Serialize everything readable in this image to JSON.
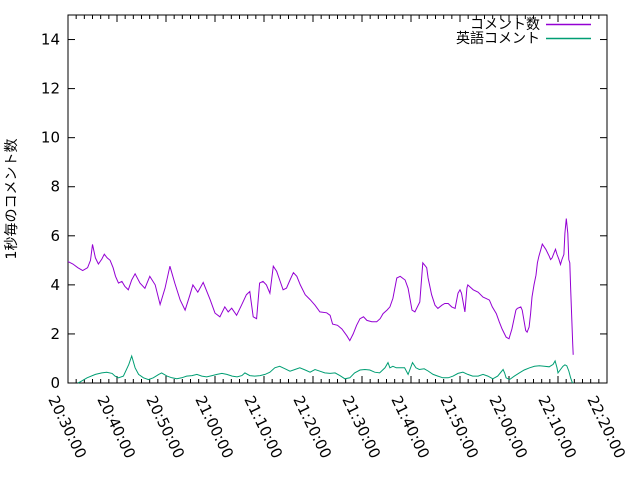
{
  "chart_data": {
    "type": "line",
    "title": "",
    "xlabel": "",
    "ylabel": "1秒毎のコメント数",
    "x_unit": "minutes since 20:30:00",
    "xlim_minutes": [
      0,
      110
    ],
    "ylim": [
      0,
      15
    ],
    "grid": false,
    "legend_position": "top-right-inside",
    "y_ticks": [
      0,
      2,
      4,
      6,
      8,
      10,
      12,
      14
    ],
    "x_major_ticks": [
      {
        "minutes": 0,
        "label": "20:30:00"
      },
      {
        "minutes": 10,
        "label": "20:40:00"
      },
      {
        "minutes": 20,
        "label": "20:50:00"
      },
      {
        "minutes": 30,
        "label": "21:00:00"
      },
      {
        "minutes": 40,
        "label": "21:10:00"
      },
      {
        "minutes": 50,
        "label": "21:20:00"
      },
      {
        "minutes": 60,
        "label": "21:30:00"
      },
      {
        "minutes": 70,
        "label": "21:40:00"
      },
      {
        "minutes": 80,
        "label": "21:50:00"
      },
      {
        "minutes": 90,
        "label": "22:00:00"
      },
      {
        "minutes": 100,
        "label": "22:10:00"
      },
      {
        "minutes": 110,
        "label": "22:20:00"
      }
    ],
    "x_minor_divisions_per_major": 6,
    "series": [
      {
        "name": "コメント数",
        "color": "#9400d3",
        "points": [
          [
            0,
            4.95
          ],
          [
            1,
            4.85
          ],
          [
            2,
            4.7
          ],
          [
            3,
            4.58
          ],
          [
            4,
            4.7
          ],
          [
            4.6,
            5.0
          ],
          [
            5,
            5.65
          ],
          [
            5.6,
            5.1
          ],
          [
            6.2,
            4.85
          ],
          [
            6.9,
            5.05
          ],
          [
            7.4,
            5.25
          ],
          [
            8,
            5.1
          ],
          [
            8.6,
            5.0
          ],
          [
            9.2,
            4.7
          ],
          [
            9.7,
            4.35
          ],
          [
            10.3,
            4.07
          ],
          [
            11,
            4.14
          ],
          [
            11.6,
            3.94
          ],
          [
            12.3,
            3.8
          ],
          [
            13,
            4.2
          ],
          [
            13.7,
            4.45
          ],
          [
            14.7,
            4.07
          ],
          [
            15.7,
            3.86
          ],
          [
            16.7,
            4.35
          ],
          [
            17.8,
            4.0
          ],
          [
            18.8,
            3.2
          ],
          [
            19.8,
            3.86
          ],
          [
            20.8,
            4.76
          ],
          [
            21.8,
            4.07
          ],
          [
            22.9,
            3.38
          ],
          [
            23.9,
            2.97
          ],
          [
            24.9,
            3.6
          ],
          [
            25.5,
            4.0
          ],
          [
            26.5,
            3.7
          ],
          [
            27.6,
            4.1
          ],
          [
            29,
            3.4
          ],
          [
            30,
            2.85
          ],
          [
            31,
            2.7
          ],
          [
            32,
            3.1
          ],
          [
            32.7,
            2.9
          ],
          [
            33.4,
            3.05
          ],
          [
            34.4,
            2.76
          ],
          [
            35.4,
            3.17
          ],
          [
            36.4,
            3.6
          ],
          [
            37.1,
            3.73
          ],
          [
            37.8,
            2.7
          ],
          [
            38.5,
            2.62
          ],
          [
            39.1,
            4.07
          ],
          [
            39.8,
            4.14
          ],
          [
            40.5,
            4.0
          ],
          [
            41.2,
            3.66
          ],
          [
            41.9,
            4.76
          ],
          [
            42.6,
            4.55
          ],
          [
            43.2,
            4.2
          ],
          [
            43.9,
            3.8
          ],
          [
            44.6,
            3.87
          ],
          [
            45.3,
            4.2
          ],
          [
            46,
            4.5
          ],
          [
            46.7,
            4.35
          ],
          [
            47.4,
            4.0
          ],
          [
            48.4,
            3.6
          ],
          [
            49.4,
            3.4
          ],
          [
            50.4,
            3.17
          ],
          [
            51.4,
            2.9
          ],
          [
            52.8,
            2.86
          ],
          [
            53.5,
            2.76
          ],
          [
            54,
            2.4
          ],
          [
            55,
            2.35
          ],
          [
            55.9,
            2.2
          ],
          [
            56.9,
            1.93
          ],
          [
            57.5,
            1.73
          ],
          [
            58.2,
            2.0
          ],
          [
            58.9,
            2.35
          ],
          [
            59.6,
            2.62
          ],
          [
            60.3,
            2.7
          ],
          [
            61,
            2.55
          ],
          [
            62,
            2.5
          ],
          [
            63,
            2.5
          ],
          [
            63.7,
            2.62
          ],
          [
            64.3,
            2.83
          ],
          [
            65.1,
            2.97
          ],
          [
            65.7,
            3.1
          ],
          [
            66.3,
            3.45
          ],
          [
            67.1,
            4.28
          ],
          [
            67.8,
            4.35
          ],
          [
            68.8,
            4.2
          ],
          [
            69.4,
            3.86
          ],
          [
            70.2,
            2.97
          ],
          [
            70.8,
            2.9
          ],
          [
            71.8,
            3.3
          ],
          [
            72.4,
            4.9
          ],
          [
            73.2,
            4.7
          ],
          [
            73.5,
            4.28
          ],
          [
            74.2,
            3.6
          ],
          [
            74.9,
            3.17
          ],
          [
            75.5,
            3.04
          ],
          [
            76.3,
            3.17
          ],
          [
            76.9,
            3.24
          ],
          [
            77.6,
            3.24
          ],
          [
            78.3,
            3.1
          ],
          [
            79,
            3.04
          ],
          [
            79.6,
            3.66
          ],
          [
            80,
            3.8
          ],
          [
            80.3,
            3.66
          ],
          [
            81,
            2.9
          ],
          [
            81.4,
            3.87
          ],
          [
            81.6,
            4.0
          ],
          [
            82.7,
            3.8
          ],
          [
            83.7,
            3.7
          ],
          [
            84.7,
            3.5
          ],
          [
            85.3,
            3.45
          ],
          [
            86,
            3.38
          ],
          [
            86.6,
            3.1
          ],
          [
            87.4,
            2.83
          ],
          [
            88,
            2.5
          ],
          [
            88.6,
            2.2
          ],
          [
            89.4,
            1.87
          ],
          [
            90,
            1.8
          ],
          [
            90.6,
            2.2
          ],
          [
            91.4,
            2.97
          ],
          [
            91.7,
            3.04
          ],
          [
            92.4,
            3.1
          ],
          [
            92.7,
            2.97
          ],
          [
            93.4,
            2.14
          ],
          [
            93.7,
            2.07
          ],
          [
            94.1,
            2.28
          ],
          [
            94.4,
            2.83
          ],
          [
            94.7,
            3.5
          ],
          [
            95.1,
            4.0
          ],
          [
            95.5,
            4.4
          ],
          [
            95.8,
            4.9
          ],
          [
            96.1,
            5.17
          ],
          [
            96.5,
            5.45
          ],
          [
            96.8,
            5.66
          ],
          [
            97.5,
            5.45
          ],
          [
            98.2,
            5.17
          ],
          [
            98.5,
            5.03
          ],
          [
            98.8,
            5.1
          ],
          [
            99.2,
            5.31
          ],
          [
            99.5,
            5.45
          ],
          [
            99.8,
            5.24
          ],
          [
            100.2,
            5.03
          ],
          [
            100.5,
            4.83
          ],
          [
            100.8,
            5.03
          ],
          [
            101.2,
            5.24
          ],
          [
            101.4,
            6.1
          ],
          [
            101.7,
            6.7
          ],
          [
            102,
            6.1
          ],
          [
            102.2,
            5.03
          ],
          [
            102.4,
            4.9
          ],
          [
            102.6,
            3.8
          ],
          [
            102.8,
            2.7
          ],
          [
            103,
            1.6
          ],
          [
            103.1,
            1.15
          ]
        ]
      },
      {
        "name": "英語コメント",
        "color": "#009e73",
        "points": [
          [
            2,
            0.0
          ],
          [
            2.5,
            0.05
          ],
          [
            3.9,
            0.21
          ],
          [
            5.6,
            0.35
          ],
          [
            6.9,
            0.41
          ],
          [
            7.9,
            0.44
          ],
          [
            9,
            0.39
          ],
          [
            9.6,
            0.28
          ],
          [
            10.3,
            0.21
          ],
          [
            11.3,
            0.28
          ],
          [
            12.4,
            0.76
          ],
          [
            13,
            1.1
          ],
          [
            13.7,
            0.62
          ],
          [
            14.4,
            0.35
          ],
          [
            15.4,
            0.21
          ],
          [
            16.4,
            0.14
          ],
          [
            17.4,
            0.21
          ],
          [
            18.5,
            0.35
          ],
          [
            19.1,
            0.41
          ],
          [
            20.2,
            0.28
          ],
          [
            21.2,
            0.21
          ],
          [
            22.2,
            0.17
          ],
          [
            23.2,
            0.21
          ],
          [
            24.2,
            0.28
          ],
          [
            25.3,
            0.3
          ],
          [
            26.3,
            0.35
          ],
          [
            27.3,
            0.28
          ],
          [
            28.3,
            0.25
          ],
          [
            29.4,
            0.3
          ],
          [
            30.4,
            0.35
          ],
          [
            31.4,
            0.39
          ],
          [
            32.4,
            0.35
          ],
          [
            33.5,
            0.28
          ],
          [
            34.5,
            0.25
          ],
          [
            35.5,
            0.3
          ],
          [
            36.1,
            0.41
          ],
          [
            37.1,
            0.3
          ],
          [
            38.1,
            0.28
          ],
          [
            39.2,
            0.3
          ],
          [
            40.2,
            0.35
          ],
          [
            41.2,
            0.44
          ],
          [
            42.2,
            0.62
          ],
          [
            43.2,
            0.68
          ],
          [
            44.3,
            0.58
          ],
          [
            45.3,
            0.48
          ],
          [
            46.3,
            0.55
          ],
          [
            47.3,
            0.62
          ],
          [
            48.4,
            0.53
          ],
          [
            49.4,
            0.44
          ],
          [
            50.4,
            0.55
          ],
          [
            51.4,
            0.48
          ],
          [
            52.4,
            0.41
          ],
          [
            53.5,
            0.39
          ],
          [
            54.5,
            0.41
          ],
          [
            55.5,
            0.3
          ],
          [
            56.5,
            0.17
          ],
          [
            57.5,
            0.21
          ],
          [
            58.5,
            0.41
          ],
          [
            59.6,
            0.53
          ],
          [
            60.6,
            0.55
          ],
          [
            61.6,
            0.53
          ],
          [
            62.6,
            0.44
          ],
          [
            63.6,
            0.41
          ],
          [
            64.7,
            0.62
          ],
          [
            65.3,
            0.83
          ],
          [
            65.7,
            0.62
          ],
          [
            66.3,
            0.68
          ],
          [
            67,
            0.62
          ],
          [
            68,
            0.62
          ],
          [
            68.7,
            0.62
          ],
          [
            69.4,
            0.35
          ],
          [
            70.3,
            0.83
          ],
          [
            71,
            0.62
          ],
          [
            71.7,
            0.55
          ],
          [
            72.7,
            0.58
          ],
          [
            73.5,
            0.49
          ],
          [
            74.5,
            0.35
          ],
          [
            75.5,
            0.28
          ],
          [
            76.5,
            0.21
          ],
          [
            77.6,
            0.21
          ],
          [
            78.6,
            0.28
          ],
          [
            79.6,
            0.39
          ],
          [
            80.6,
            0.44
          ],
          [
            81.6,
            0.35
          ],
          [
            82.6,
            0.28
          ],
          [
            83.7,
            0.28
          ],
          [
            84.7,
            0.35
          ],
          [
            85.7,
            0.28
          ],
          [
            86.7,
            0.17
          ],
          [
            87.7,
            0.28
          ],
          [
            88.8,
            0.55
          ],
          [
            89.1,
            0.41
          ],
          [
            89.4,
            0.21
          ],
          [
            90.1,
            0.14
          ],
          [
            91.1,
            0.28
          ],
          [
            92.1,
            0.41
          ],
          [
            93.1,
            0.53
          ],
          [
            94.2,
            0.62
          ],
          [
            95.2,
            0.68
          ],
          [
            96.2,
            0.7
          ],
          [
            97.2,
            0.68
          ],
          [
            98.2,
            0.66
          ],
          [
            99,
            0.76
          ],
          [
            99.4,
            0.9
          ],
          [
            99.8,
            0.62
          ],
          [
            100,
            0.41
          ],
          [
            100.5,
            0.55
          ],
          [
            101,
            0.68
          ],
          [
            101.4,
            0.74
          ],
          [
            101.8,
            0.7
          ],
          [
            102.2,
            0.49
          ],
          [
            102.6,
            0.2
          ],
          [
            102.9,
            0.03
          ],
          [
            103.1,
            0.0
          ]
        ]
      }
    ]
  }
}
